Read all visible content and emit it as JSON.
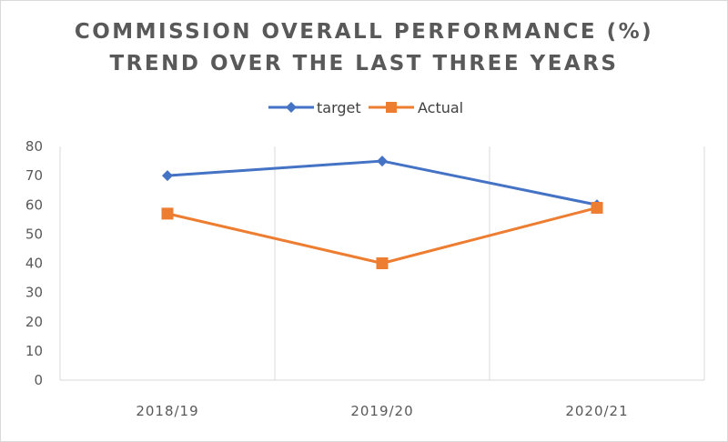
{
  "chart_data": {
    "type": "line",
    "title_lines": [
      "COMMISSION OVERALL PERFORMANCE (%)",
      "TREND OVER THE LAST THREE YEARS"
    ],
    "categories": [
      "2018/19",
      "2019/20",
      "2020/21"
    ],
    "series": [
      {
        "name": "target",
        "values": [
          70,
          75,
          60
        ],
        "color": "#4472c4",
        "marker": "diamond"
      },
      {
        "name": "Actual",
        "values": [
          57,
          40,
          59
        ],
        "color": "#ed7d31",
        "marker": "square"
      }
    ],
    "y_ticks": [
      "0",
      "10",
      "20",
      "30",
      "40",
      "50",
      "60",
      "70",
      "80"
    ],
    "ylim": [
      0,
      80
    ],
    "grid": "vertical",
    "legend_position": "top"
  }
}
